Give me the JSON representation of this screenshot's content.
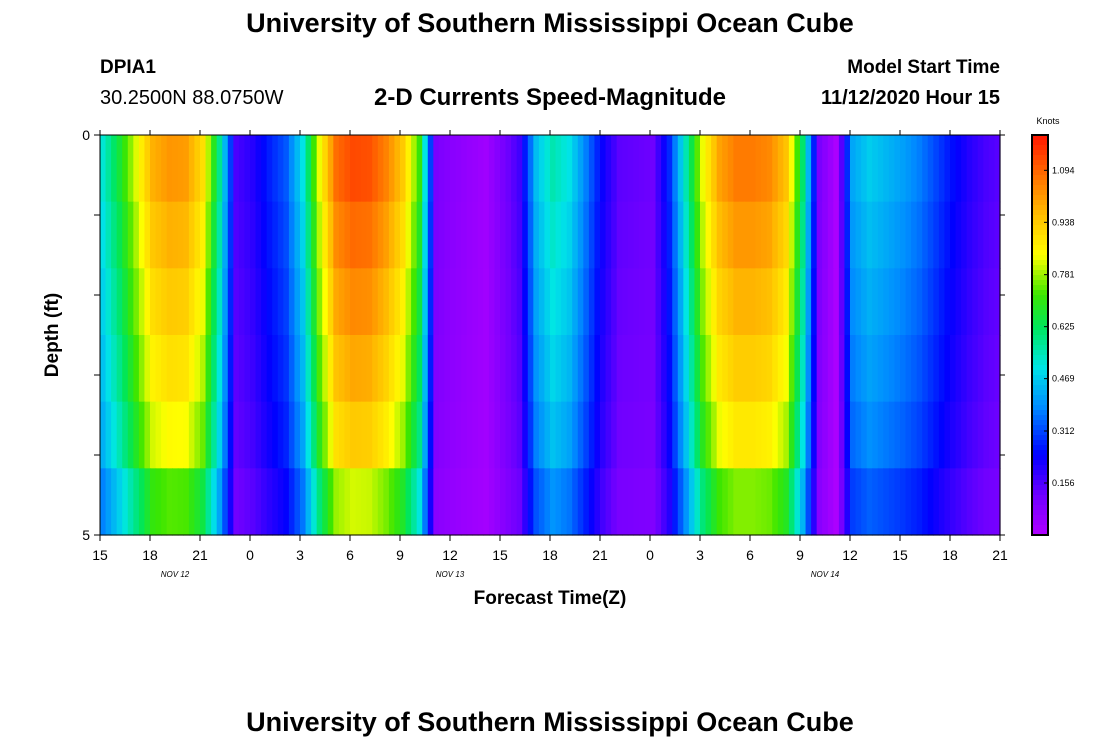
{
  "header": {
    "title": "University of Southern Mississippi Ocean Cube",
    "station": "DPIA1",
    "coords": "30.2500N 88.0750W",
    "subtitle": "2-D Currents Speed-Magnitude",
    "model_start_label": "Model Start Time",
    "model_start_value": "11/12/2020 Hour 15"
  },
  "footer": {
    "title": "University of Southern Mississippi Ocean Cube"
  },
  "chart_data": {
    "type": "heatmap",
    "title": "2-D Currents Speed-Magnitude",
    "xlabel": "Forecast Time(Z)",
    "ylabel": "Depth (ft)",
    "x_range_hours": [
      0,
      54
    ],
    "x_tick_labels": [
      "15",
      "18",
      "21",
      "0",
      "3",
      "6",
      "9",
      "12",
      "15",
      "18",
      "21",
      "0",
      "3",
      "6",
      "9",
      "12",
      "15",
      "18",
      "21"
    ],
    "date_labels": [
      {
        "label": "NOV 12",
        "hour": 4.5
      },
      {
        "label": "NOV 13",
        "hour": 21
      },
      {
        "label": "NOV 14",
        "hour": 43.5
      }
    ],
    "y_range": [
      0,
      5
    ],
    "y_tick_labels": [
      "0",
      "5"
    ],
    "depth_rows": [
      0,
      1,
      2,
      3,
      4,
      5
    ],
    "colorbar": {
      "unit": "Knots",
      "min": 0,
      "max": 1.2,
      "tick_labels": [
        "1.094",
        "0.938",
        "0.781",
        "0.625",
        "0.469",
        "0.312",
        "0.156"
      ],
      "tick_values": [
        1.094,
        0.938,
        0.781,
        0.625,
        0.469,
        0.312,
        0.156
      ]
    },
    "speed_profile_hourly": [
      0.52,
      0.66,
      0.82,
      0.98,
      1.02,
      1.01,
      0.9,
      0.58,
      0.16,
      0.2,
      0.27,
      0.33,
      0.5,
      0.83,
      1.08,
      1.13,
      1.12,
      1.05,
      0.94,
      0.71,
      0.1,
      0.07,
      0.05,
      0.03,
      0.1,
      0.17,
      0.45,
      0.55,
      0.5,
      0.37,
      0.23,
      0.14,
      0.13,
      0.12,
      0.28,
      0.55,
      0.83,
      1.0,
      1.06,
      1.06,
      1.04,
      0.95,
      0.61,
      0.1,
      0.01,
      0.42,
      0.47,
      0.44,
      0.41,
      0.37,
      0.31,
      0.25,
      0.2,
      0.16,
      0.14
    ],
    "depth_factors": [
      1.0,
      0.96,
      0.92,
      0.88,
      0.83,
      0.72
    ],
    "notes": "Cell value = speed_profile_hourly[hour] * depth_factors[row]"
  }
}
